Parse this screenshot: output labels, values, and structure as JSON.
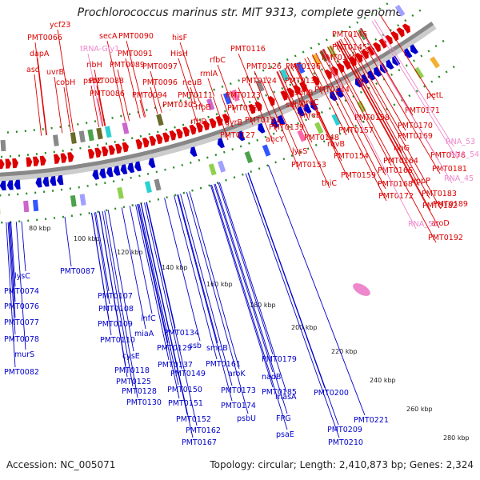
{
  "title": "Prochlorococcus marinus str. MIT 9313, complete genome",
  "footer": {
    "accession": "Accession: NC_005071",
    "summary": "Topology: circular; Length: 2,410,873 bp; Genes: 2,324"
  },
  "colors": {
    "forward": "#dd0000",
    "reverse": "#0000cc",
    "rna": "#ee88cc",
    "backbone": "#888888",
    "dots": "#2a8a2a"
  },
  "ticks": [
    "80 kbp",
    "100 kbp",
    "120 kbp",
    "140 kbp",
    "160 kbp",
    "180 kbp",
    "200 kbp",
    "220 kbp",
    "240 kbp",
    "260 kbp",
    "280 kbp"
  ],
  "top_labels": [
    {
      "text": "ycf23",
      "kind": "forward"
    },
    {
      "text": "PMT0066",
      "kind": "forward"
    },
    {
      "text": "dapA",
      "kind": "forward"
    },
    {
      "text": "asd",
      "kind": "forward"
    },
    {
      "text": "uvrB",
      "kind": "forward"
    },
    {
      "text": "cobH",
      "kind": "forward"
    },
    {
      "text": "secA",
      "kind": "forward"
    },
    {
      "text": "PMT0090",
      "kind": "forward"
    },
    {
      "text": "tRNA-Gly1",
      "kind": "rna"
    },
    {
      "text": "PMT0091",
      "kind": "forward"
    },
    {
      "text": "ribH",
      "kind": "forward"
    },
    {
      "text": "PMT0089",
      "kind": "forward"
    },
    {
      "text": "psbZ",
      "kind": "forward"
    },
    {
      "text": "PMT0088",
      "kind": "forward"
    },
    {
      "text": "PMT0086",
      "kind": "forward"
    },
    {
      "text": "hisF",
      "kind": "forward"
    },
    {
      "text": "HisH",
      "kind": "forward"
    },
    {
      "text": "PMT0097",
      "kind": "forward"
    },
    {
      "text": "PMT0096",
      "kind": "forward"
    },
    {
      "text": "PMT0094",
      "kind": "forward"
    },
    {
      "text": "neuB",
      "kind": "forward"
    },
    {
      "text": "PMT0111",
      "kind": "forward"
    },
    {
      "text": "PMT0105",
      "kind": "forward"
    },
    {
      "text": "rfbB",
      "kind": "forward"
    },
    {
      "text": "rfbD",
      "kind": "forward"
    },
    {
      "text": "rmlA",
      "kind": "forward"
    },
    {
      "text": "rfbC",
      "kind": "forward"
    },
    {
      "text": "PMT0116",
      "kind": "forward"
    },
    {
      "text": "PMT0126",
      "kind": "forward"
    },
    {
      "text": "PMT0124",
      "kind": "forward"
    },
    {
      "text": "PMT0123",
      "kind": "forward"
    },
    {
      "text": "PMT0122",
      "kind": "forward"
    },
    {
      "text": "gyrB",
      "kind": "forward"
    },
    {
      "text": "PMT0127",
      "kind": "forward"
    },
    {
      "text": "PMT0146",
      "kind": "forward"
    },
    {
      "text": "PMT0145",
      "kind": "forward"
    },
    {
      "text": "PMT0140",
      "kind": "forward"
    },
    {
      "text": "PMT0136",
      "kind": "forward"
    },
    {
      "text": "PMT0135",
      "kind": "forward"
    },
    {
      "text": "PMT0144",
      "kind": "forward"
    },
    {
      "text": "sdhB",
      "kind": "forward"
    },
    {
      "text": "sdhA",
      "kind": "forward"
    },
    {
      "text": "mreC",
      "kind": "forward"
    },
    {
      "text": "PMT0131",
      "kind": "forward"
    },
    {
      "text": "mreB",
      "kind": "forward"
    },
    {
      "text": "PMT0139",
      "kind": "forward"
    },
    {
      "text": "ahcY",
      "kind": "forward"
    },
    {
      "text": "PMT0148",
      "kind": "forward"
    },
    {
      "text": "lysS",
      "kind": "forward"
    },
    {
      "text": "PMT0153",
      "kind": "forward"
    },
    {
      "text": "PMT0158",
      "kind": "forward"
    },
    {
      "text": "PMT0157",
      "kind": "forward"
    },
    {
      "text": "ruvB",
      "kind": "forward"
    },
    {
      "text": "PMT0154",
      "kind": "forward"
    },
    {
      "text": "PMT0159",
      "kind": "forward"
    },
    {
      "text": "thiC",
      "kind": "forward"
    },
    {
      "text": "petL",
      "kind": "forward"
    },
    {
      "text": "PMT0171",
      "kind": "forward"
    },
    {
      "text": "PMT0170",
      "kind": "forward"
    },
    {
      "text": "PMT0169",
      "kind": "forward"
    },
    {
      "text": "ribG",
      "kind": "forward"
    },
    {
      "text": "PMT0164",
      "kind": "forward"
    },
    {
      "text": "PMT0166",
      "kind": "forward"
    },
    {
      "text": "PMT0168",
      "kind": "forward"
    },
    {
      "text": "PMT0172",
      "kind": "forward"
    },
    {
      "text": "PMT0176",
      "kind": "forward"
    },
    {
      "text": "PMT0181",
      "kind": "forward"
    },
    {
      "text": "uppP",
      "kind": "forward"
    },
    {
      "text": "PMT0183",
      "kind": "forward"
    },
    {
      "text": "PMT0182",
      "kind": "forward"
    },
    {
      "text": "PMT0189",
      "kind": "forward"
    },
    {
      "text": "aroD",
      "kind": "forward"
    },
    {
      "text": "PMT0192",
      "kind": "forward"
    },
    {
      "text": "RNA_53",
      "kind": "rna"
    },
    {
      "text": "RNA_54",
      "kind": "rna"
    },
    {
      "text": "RNA_45",
      "kind": "rna"
    },
    {
      "text": "RNA_55",
      "kind": "rna"
    }
  ],
  "bottom_labels": [
    {
      "text": "lysC"
    },
    {
      "text": "PMT0074"
    },
    {
      "text": "PMT0076"
    },
    {
      "text": "PMT0077"
    },
    {
      "text": "PMT0078"
    },
    {
      "text": "murS"
    },
    {
      "text": "PMT0082"
    },
    {
      "text": "PMT0087"
    },
    {
      "text": "PMT0107"
    },
    {
      "text": "PMT0108"
    },
    {
      "text": "PMT0109"
    },
    {
      "text": "infC"
    },
    {
      "text": "miaA"
    },
    {
      "text": "PMT0110"
    },
    {
      "text": "cysE"
    },
    {
      "text": "PMT0118"
    },
    {
      "text": "PMT0125"
    },
    {
      "text": "PMT0128"
    },
    {
      "text": "PMT0130"
    },
    {
      "text": "PMT0129"
    },
    {
      "text": "PMT0137"
    },
    {
      "text": "PMT0134"
    },
    {
      "text": "ssb"
    },
    {
      "text": "PMT0149"
    },
    {
      "text": "PMT0150"
    },
    {
      "text": "PMT0151"
    },
    {
      "text": "PMT0152"
    },
    {
      "text": "smpB"
    },
    {
      "text": "PMT0161"
    },
    {
      "text": "aroK"
    },
    {
      "text": "PMT0162"
    },
    {
      "text": "PMT0167"
    },
    {
      "text": "PMT0173"
    },
    {
      "text": "PMT0174"
    },
    {
      "text": "PMT0179"
    },
    {
      "text": "nadB"
    },
    {
      "text": "PMT0185"
    },
    {
      "text": "psbU"
    },
    {
      "text": "masA"
    },
    {
      "text": "FPG"
    },
    {
      "text": "psaE"
    },
    {
      "text": "PMT0200"
    },
    {
      "text": "PMT0209"
    },
    {
      "text": "PMT0210"
    },
    {
      "text": "PMT0221"
    }
  ]
}
